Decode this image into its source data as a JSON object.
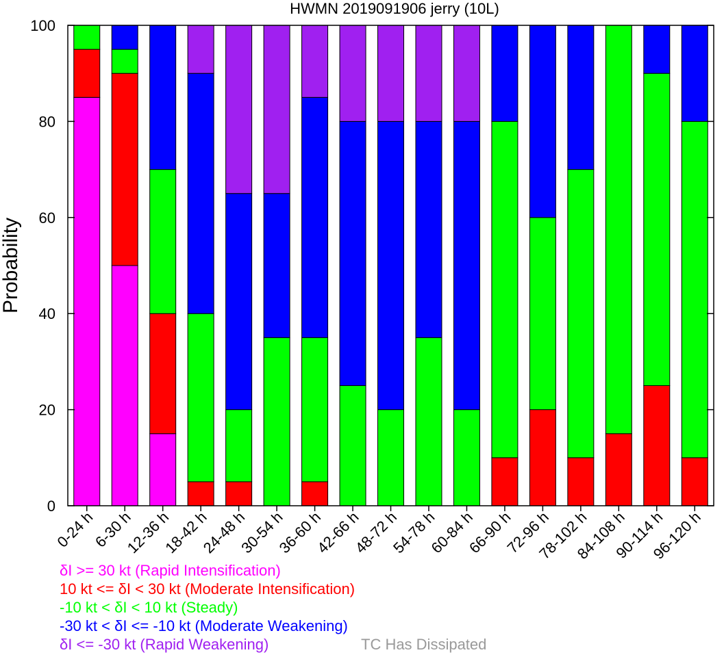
{
  "chart_data": {
    "type": "bar",
    "stacked": true,
    "title": "HWMN 2019091906 jerry (10L)",
    "xlabel": "",
    "ylabel": "Probability",
    "ylim": [
      0,
      100
    ],
    "yticks": [
      "0",
      "20",
      "40",
      "60",
      "80",
      "100"
    ],
    "grid": false,
    "categories": [
      "0-24 h",
      "6-30 h",
      "12-36 h",
      "18-42 h",
      "24-48 h",
      "30-54 h",
      "36-60 h",
      "42-66 h",
      "48-72 h",
      "54-78 h",
      "60-84 h",
      "66-90 h",
      "72-96 h",
      "78-102 h",
      "84-108 h",
      "90-114 h",
      "96-120 h"
    ],
    "series": [
      {
        "name": "δI >= 30 kt (Rapid Intensification)",
        "color": "#ff00ff",
        "values": [
          85,
          50,
          15,
          0,
          0,
          0,
          0,
          0,
          0,
          0,
          0,
          0,
          0,
          0,
          0,
          0,
          0
        ]
      },
      {
        "name": "10 kt <= δI < 30 kt (Moderate Intensification)",
        "color": "#ff0000",
        "values": [
          10,
          40,
          25,
          5,
          5,
          0,
          5,
          0,
          0,
          0,
          0,
          10,
          20,
          10,
          15,
          25,
          10
        ]
      },
      {
        "name": "-10 kt < δI < 10 kt (Steady)",
        "color": "#00ff00",
        "values": [
          5,
          5,
          30,
          35,
          15,
          35,
          30,
          25,
          20,
          35,
          20,
          70,
          40,
          60,
          85,
          65,
          70
        ]
      },
      {
        "name": "-30 kt < δI <= -10 kt (Moderate Weakening)",
        "color": "#0000ff",
        "values": [
          0,
          5,
          30,
          50,
          45,
          30,
          50,
          55,
          60,
          45,
          60,
          20,
          40,
          30,
          0,
          10,
          20
        ]
      },
      {
        "name": "δI <= -30 kt (Rapid Weakening)",
        "color": "#a020f0",
        "values": [
          0,
          0,
          0,
          10,
          35,
          35,
          15,
          20,
          20,
          20,
          20,
          0,
          0,
          0,
          0,
          0,
          0
        ]
      },
      {
        "name": "TC Has Dissipated",
        "color": "#999999",
        "values": [
          0,
          0,
          0,
          0,
          0,
          0,
          0,
          0,
          0,
          0,
          0,
          0,
          0,
          0,
          0,
          0,
          0
        ]
      }
    ]
  }
}
